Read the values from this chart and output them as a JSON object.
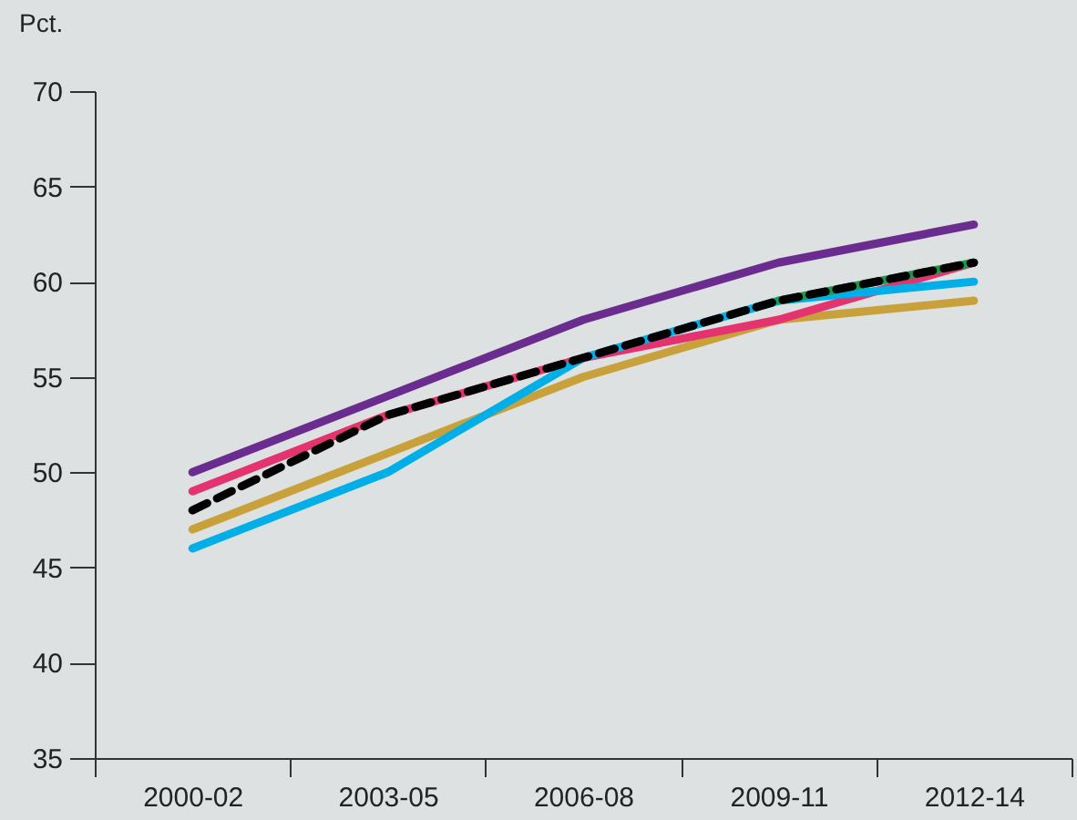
{
  "chart_data": {
    "type": "line",
    "ylabel": "Pct.",
    "categories": [
      "2000-02",
      "2003-05",
      "2006-08",
      "2009-11",
      "2012-14"
    ],
    "ylim": [
      35,
      70
    ],
    "yticks": [
      35,
      40,
      45,
      50,
      55,
      60,
      65,
      70
    ],
    "series": [
      {
        "color": "#c9a13b",
        "values": [
          47,
          51,
          55,
          58,
          59
        ]
      },
      {
        "color": "#e5336f",
        "values": [
          49,
          53,
          56,
          58,
          61
        ]
      },
      {
        "color": "#00aee8",
        "values": [
          46,
          50,
          56,
          59,
          60
        ]
      },
      {
        "color": "#1a9a4a",
        "values": [
          null,
          null,
          null,
          59,
          61
        ]
      },
      {
        "color": "#6a2c8e",
        "values": [
          50,
          54,
          58,
          61,
          63
        ]
      },
      {
        "color": "#000000",
        "values": [
          48,
          53,
          56,
          59,
          61
        ],
        "line_style": "dashed"
      }
    ]
  }
}
